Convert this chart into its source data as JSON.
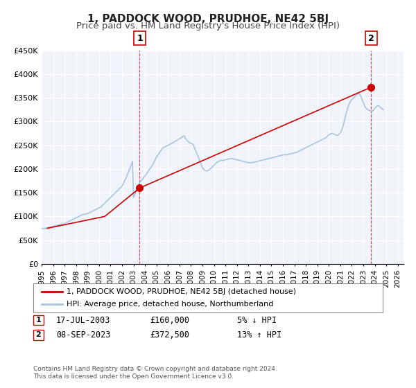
{
  "title": "1, PADDOCK WOOD, PRUDHOE, NE42 5BJ",
  "subtitle": "Price paid vs. HM Land Registry's House Price Index (HPI)",
  "xlabel": "",
  "ylabel": "",
  "ylim": [
    0,
    450000
  ],
  "yticks": [
    0,
    50000,
    100000,
    150000,
    200000,
    250000,
    300000,
    350000,
    400000,
    450000
  ],
  "ytick_labels": [
    "£0",
    "£50K",
    "£100K",
    "£150K",
    "£200K",
    "£250K",
    "£300K",
    "£350K",
    "£400K",
    "£450K"
  ],
  "xlim_start": 1995.0,
  "xlim_end": 2026.5,
  "xticks": [
    1995,
    1996,
    1997,
    1998,
    1999,
    2000,
    2001,
    2002,
    2003,
    2004,
    2005,
    2006,
    2007,
    2008,
    2009,
    2010,
    2011,
    2012,
    2013,
    2014,
    2015,
    2016,
    2017,
    2018,
    2019,
    2020,
    2021,
    2022,
    2023,
    2024,
    2025,
    2026
  ],
  "hpi_color": "#a8c4e0",
  "price_color": "#cc0000",
  "background_color": "#f0f4fa",
  "plot_bg_color": "#f0f4fa",
  "grid_color": "#ffffff",
  "marker1_x": 2003.538,
  "marker1_y": 160000,
  "marker2_x": 2023.689,
  "marker2_y": 372500,
  "vline1_x": 2003.538,
  "vline2_x": 2023.689,
  "legend_label_price": "1, PADDOCK WOOD, PRUDHOE, NE42 5BJ (detached house)",
  "legend_label_hpi": "HPI: Average price, detached house, Northumberland",
  "annotation1_label": "1",
  "annotation2_label": "2",
  "table_row1": [
    "1",
    "17-JUL-2003",
    "£160,000",
    "5% ↓ HPI"
  ],
  "table_row2": [
    "2",
    "08-SEP-2023",
    "£372,500",
    "13% ↑ HPI"
  ],
  "footer_line1": "Contains HM Land Registry data © Crown copyright and database right 2024.",
  "footer_line2": "This data is licensed under the Open Government Licence v3.0.",
  "title_fontsize": 11,
  "subtitle_fontsize": 9.5,
  "hpi_data": {
    "years": [
      1995.0,
      1995.083,
      1995.167,
      1995.25,
      1995.333,
      1995.417,
      1995.5,
      1995.583,
      1995.667,
      1995.75,
      1995.833,
      1995.917,
      1996.0,
      1996.083,
      1996.167,
      1996.25,
      1996.333,
      1996.417,
      1996.5,
      1996.583,
      1996.667,
      1996.75,
      1996.833,
      1996.917,
      1997.0,
      1997.083,
      1997.167,
      1997.25,
      1997.333,
      1997.417,
      1997.5,
      1997.583,
      1997.667,
      1997.75,
      1997.833,
      1997.917,
      1998.0,
      1998.083,
      1998.167,
      1998.25,
      1998.333,
      1998.417,
      1998.5,
      1998.583,
      1998.667,
      1998.75,
      1998.833,
      1998.917,
      1999.0,
      1999.083,
      1999.167,
      1999.25,
      1999.333,
      1999.417,
      1999.5,
      1999.583,
      1999.667,
      1999.75,
      1999.833,
      1999.917,
      2000.0,
      2000.083,
      2000.167,
      2000.25,
      2000.333,
      2000.417,
      2000.5,
      2000.583,
      2000.667,
      2000.75,
      2000.833,
      2000.917,
      2001.0,
      2001.083,
      2001.167,
      2001.25,
      2001.333,
      2001.417,
      2001.5,
      2001.583,
      2001.667,
      2001.75,
      2001.833,
      2001.917,
      2002.0,
      2002.083,
      2002.167,
      2002.25,
      2002.333,
      2002.417,
      2002.5,
      2002.583,
      2002.667,
      2002.75,
      2002.833,
      2002.917,
      2003.0,
      2003.083,
      2003.167,
      2003.25,
      2003.333,
      2003.417,
      2003.5,
      2003.583,
      2003.667,
      2003.75,
      2003.833,
      2003.917,
      2004.0,
      2004.083,
      2004.167,
      2004.25,
      2004.333,
      2004.417,
      2004.5,
      2004.583,
      2004.667,
      2004.75,
      2004.833,
      2004.917,
      2005.0,
      2005.083,
      2005.167,
      2005.25,
      2005.333,
      2005.417,
      2005.5,
      2005.583,
      2005.667,
      2005.75,
      2005.833,
      2005.917,
      2006.0,
      2006.083,
      2006.167,
      2006.25,
      2006.333,
      2006.417,
      2006.5,
      2006.583,
      2006.667,
      2006.75,
      2006.833,
      2006.917,
      2007.0,
      2007.083,
      2007.167,
      2007.25,
      2007.333,
      2007.417,
      2007.5,
      2007.583,
      2007.667,
      2007.75,
      2007.833,
      2007.917,
      2008.0,
      2008.083,
      2008.167,
      2008.25,
      2008.333,
      2008.417,
      2008.5,
      2008.583,
      2008.667,
      2008.75,
      2008.833,
      2008.917,
      2009.0,
      2009.083,
      2009.167,
      2009.25,
      2009.333,
      2009.417,
      2009.5,
      2009.583,
      2009.667,
      2009.75,
      2009.833,
      2009.917,
      2010.0,
      2010.083,
      2010.167,
      2010.25,
      2010.333,
      2010.417,
      2010.5,
      2010.583,
      2010.667,
      2010.75,
      2010.833,
      2010.917,
      2011.0,
      2011.083,
      2011.167,
      2011.25,
      2011.333,
      2011.417,
      2011.5,
      2011.583,
      2011.667,
      2011.75,
      2011.833,
      2011.917,
      2012.0,
      2012.083,
      2012.167,
      2012.25,
      2012.333,
      2012.417,
      2012.5,
      2012.583,
      2012.667,
      2012.75,
      2012.833,
      2012.917,
      2013.0,
      2013.083,
      2013.167,
      2013.25,
      2013.333,
      2013.417,
      2013.5,
      2013.583,
      2013.667,
      2013.75,
      2013.833,
      2013.917,
      2014.0,
      2014.083,
      2014.167,
      2014.25,
      2014.333,
      2014.417,
      2014.5,
      2014.583,
      2014.667,
      2014.75,
      2014.833,
      2014.917,
      2015.0,
      2015.083,
      2015.167,
      2015.25,
      2015.333,
      2015.417,
      2015.5,
      2015.583,
      2015.667,
      2015.75,
      2015.833,
      2015.917,
      2016.0,
      2016.083,
      2016.167,
      2016.25,
      2016.333,
      2016.417,
      2016.5,
      2016.583,
      2016.667,
      2016.75,
      2016.833,
      2016.917,
      2017.0,
      2017.083,
      2017.167,
      2017.25,
      2017.333,
      2017.417,
      2017.5,
      2017.583,
      2017.667,
      2017.75,
      2017.833,
      2017.917,
      2018.0,
      2018.083,
      2018.167,
      2018.25,
      2018.333,
      2018.417,
      2018.5,
      2018.583,
      2018.667,
      2018.75,
      2018.833,
      2018.917,
      2019.0,
      2019.083,
      2019.167,
      2019.25,
      2019.333,
      2019.417,
      2019.5,
      2019.583,
      2019.667,
      2019.75,
      2019.833,
      2019.917,
      2020.0,
      2020.083,
      2020.167,
      2020.25,
      2020.333,
      2020.417,
      2020.5,
      2020.583,
      2020.667,
      2020.75,
      2020.833,
      2020.917,
      2021.0,
      2021.083,
      2021.167,
      2021.25,
      2021.333,
      2021.417,
      2021.5,
      2021.583,
      2021.667,
      2021.75,
      2021.833,
      2021.917,
      2022.0,
      2022.083,
      2022.167,
      2022.25,
      2022.333,
      2022.417,
      2022.5,
      2022.583,
      2022.667,
      2022.75,
      2022.833,
      2022.917,
      2023.0,
      2023.083,
      2023.167,
      2023.25,
      2023.333,
      2023.417,
      2023.5,
      2023.583,
      2023.667,
      2023.75,
      2023.833,
      2023.917,
      2024.0,
      2024.083,
      2024.167,
      2024.25,
      2024.333,
      2024.417,
      2024.5,
      2024.583,
      2024.667,
      2024.75
    ],
    "values": [
      75000,
      74500,
      74000,
      74500,
      75000,
      75500,
      76000,
      76500,
      77000,
      77500,
      78000,
      78500,
      79000,
      79500,
      80000,
      80500,
      81000,
      81500,
      82000,
      82500,
      83000,
      83500,
      84000,
      84500,
      85000,
      86000,
      87000,
      88000,
      89000,
      90000,
      91000,
      92000,
      93000,
      94000,
      95000,
      96000,
      97000,
      98000,
      99000,
      100000,
      101000,
      102000,
      103000,
      103500,
      104000,
      104500,
      105000,
      105500,
      106000,
      107000,
      108000,
      109000,
      110000,
      111000,
      112000,
      113000,
      114000,
      115000,
      116000,
      117000,
      118000,
      119000,
      120000,
      122000,
      124000,
      126000,
      128000,
      130000,
      132000,
      134000,
      136000,
      138000,
      140000,
      142000,
      144000,
      146000,
      148000,
      150000,
      152000,
      154000,
      156000,
      158000,
      160000,
      162000,
      164000,
      168000,
      172000,
      176000,
      180000,
      185000,
      190000,
      195000,
      200000,
      205000,
      210000,
      216000,
      140000,
      145000,
      150000,
      155000,
      160000,
      165000,
      170000,
      173000,
      175000,
      178000,
      180000,
      183000,
      185000,
      188000,
      191000,
      194000,
      197000,
      200000,
      203000,
      206000,
      209000,
      213000,
      217000,
      221000,
      225000,
      228000,
      231000,
      234000,
      237000,
      240000,
      243000,
      245000,
      246000,
      247000,
      248000,
      249000,
      250000,
      251000,
      252000,
      253000,
      254000,
      255000,
      256000,
      258000,
      259000,
      260000,
      261000,
      263000,
      264000,
      265000,
      266000,
      268000,
      269000,
      270000,
      265000,
      262000,
      260000,
      258000,
      256000,
      255000,
      254000,
      253000,
      252000,
      248000,
      243000,
      238000,
      233000,
      228000,
      223000,
      218000,
      213000,
      208000,
      203000,
      200000,
      198000,
      197000,
      196000,
      196000,
      197000,
      198000,
      200000,
      202000,
      204000,
      206000,
      208000,
      210000,
      212000,
      214000,
      215000,
      216000,
      217000,
      218000,
      218000,
      218000,
      218500,
      219000,
      219500,
      220000,
      220500,
      221000,
      221500,
      222000,
      222000,
      222000,
      221500,
      221000,
      220500,
      220000,
      219500,
      219000,
      218500,
      218000,
      217500,
      217000,
      216500,
      216000,
      215500,
      215000,
      214500,
      214000,
      213500,
      213000,
      213000,
      213000,
      213500,
      214000,
      214500,
      215000,
      215500,
      216000,
      216500,
      217000,
      217500,
      218000,
      218500,
      219000,
      219500,
      220000,
      220500,
      221000,
      221500,
      222000,
      222500,
      223000,
      223500,
      224000,
      224500,
      225000,
      225500,
      226000,
      226500,
      227000,
      227500,
      228000,
      228500,
      229000,
      229500,
      230000,
      230000,
      230000,
      230000,
      230500,
      231000,
      231500,
      232000,
      232500,
      233000,
      233500,
      234000,
      234500,
      235000,
      236000,
      237000,
      238000,
      239000,
      240000,
      241000,
      242000,
      243000,
      244000,
      245000,
      246000,
      247000,
      248000,
      249000,
      250000,
      251000,
      252000,
      253000,
      254000,
      255000,
      256000,
      257000,
      258000,
      259000,
      260000,
      261000,
      262000,
      263000,
      264000,
      265000,
      266000,
      268000,
      270000,
      272000,
      273000,
      274000,
      275000,
      275000,
      274000,
      273000,
      272000,
      271000,
      271000,
      272000,
      274000,
      276000,
      280000,
      285000,
      292000,
      300000,
      308000,
      316000,
      324000,
      330000,
      336000,
      340000,
      344000,
      346000,
      348000,
      350000,
      352000,
      354000,
      356000,
      358000,
      360000,
      358000,
      355000,
      350000,
      345000,
      340000,
      335000,
      331000,
      328000,
      326000,
      325000,
      324000,
      323000,
      322000,
      322000,
      323000,
      325000,
      328000,
      330000,
      332000,
      333000,
      333000,
      332000,
      330000,
      328000,
      326000,
      325000
    ]
  },
  "price_data": {
    "years": [
      1995.5,
      2000.5,
      2003.538,
      2023.689
    ],
    "values": [
      75000,
      100000,
      160000,
      372500
    ]
  }
}
